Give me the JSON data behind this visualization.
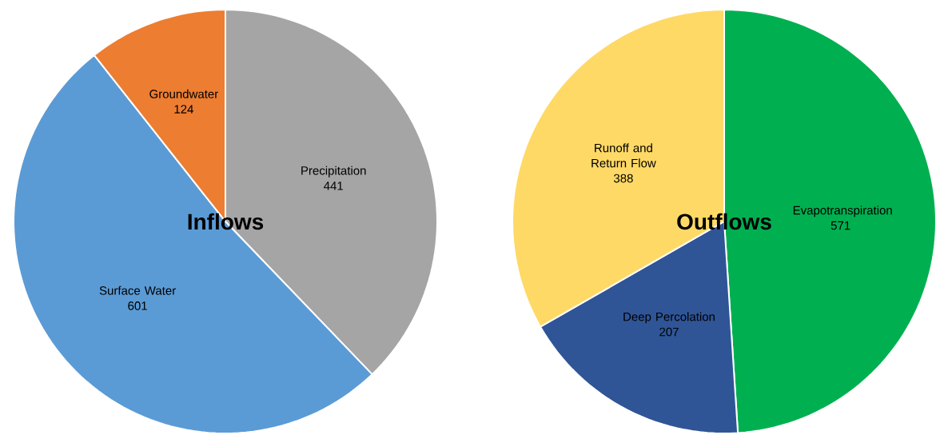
{
  "chart_data": [
    {
      "type": "pie",
      "title": "Inflows",
      "categories": [
        "Precipitation",
        "Surface Water",
        "Groundwater"
      ],
      "values": [
        441,
        601,
        124
      ],
      "colors": [
        "#a5a5a5",
        "#5b9bd5",
        "#ed7d31"
      ],
      "data_labels": true
    },
    {
      "type": "pie",
      "title": "Outflows",
      "categories": [
        "Evapotranspiration",
        "Deep Percolation",
        "Runoff and Return Flow"
      ],
      "values": [
        571,
        207,
        388
      ],
      "colors": [
        "#00b050",
        "#2f5597",
        "#ffd966"
      ],
      "data_labels": true
    }
  ]
}
